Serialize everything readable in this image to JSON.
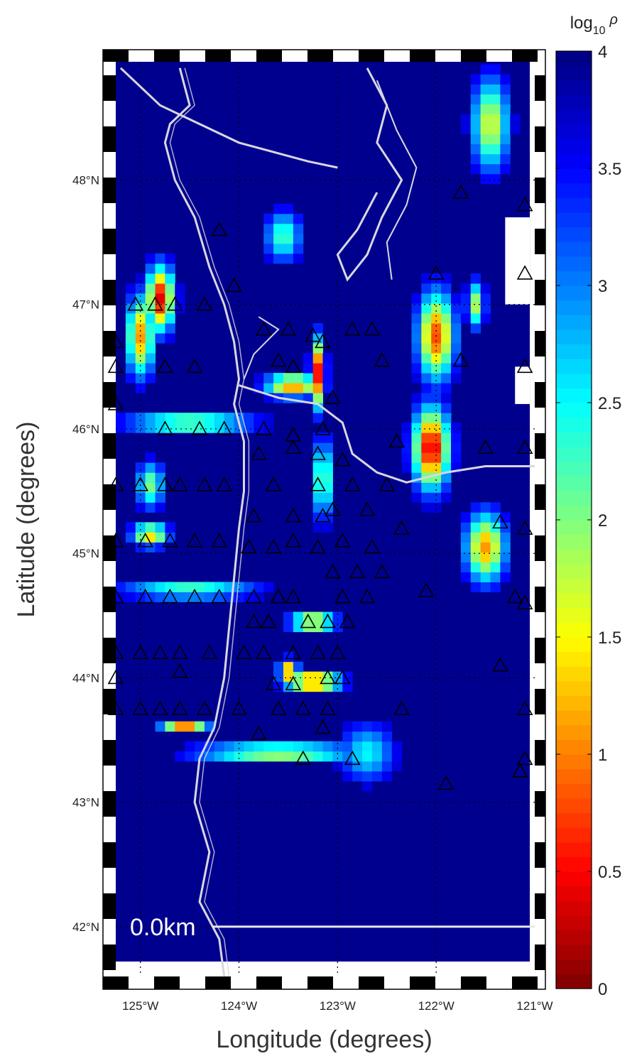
{
  "map": {
    "xlabel": "Longitude (degrees)",
    "ylabel": "Latitude (degrees)",
    "lon_range": [
      -125.25,
      -121.0
    ],
    "lat_range": [
      41.6,
      48.95
    ],
    "lon_tick_values": [
      -125,
      -124,
      -123,
      -122,
      -121
    ],
    "lon_tick_labels": [
      "125°W",
      "124°W",
      "123°W",
      "122°W",
      "121°W"
    ],
    "lat_tick_values": [
      42,
      43,
      44,
      45,
      46,
      47,
      48
    ],
    "lat_tick_labels": [
      "42°N",
      "43°N",
      "44°N",
      "45°N",
      "46°N",
      "47°N",
      "48°N"
    ],
    "depth_label": "0.0km",
    "scale_bar_lat": 42.0
  },
  "colorbar": {
    "title": "log10 ρ",
    "title_base": "log",
    "title_sub": "10",
    "title_symbol": "ρ",
    "min": 0,
    "max": 4,
    "tick_values": [
      0,
      0.5,
      1,
      1.5,
      2,
      2.5,
      3,
      3.5,
      4
    ],
    "tick_labels": [
      "0",
      "0.5",
      "1",
      "1.5",
      "2",
      "2.5",
      "3",
      "3.5",
      "4"
    ],
    "colormap": "jet"
  },
  "colors": {
    "background_value": "#00008f",
    "no_data": "#ffffff",
    "coastline": "#d8d8e0",
    "station_marker": "#000000"
  },
  "stations": [
    {
      "lon": -121.75,
      "lat": 47.9
    },
    {
      "lon": -121.1,
      "lat": 47.8
    },
    {
      "lon": -124.2,
      "lat": 47.6
    },
    {
      "lon": -122.0,
      "lat": 47.25
    },
    {
      "lon": -121.1,
      "lat": 47.25
    },
    {
      "lon": -124.05,
      "lat": 47.15
    },
    {
      "lon": -125.05,
      "lat": 47.0
    },
    {
      "lon": -124.85,
      "lat": 47.0
    },
    {
      "lon": -124.65,
      "lat": 47.0
    },
    {
      "lon": -124.35,
      "lat": 47.0
    },
    {
      "lon": -123.75,
      "lat": 46.8
    },
    {
      "lon": -123.5,
      "lat": 46.8
    },
    {
      "lon": -123.25,
      "lat": 46.75
    },
    {
      "lon": -123.15,
      "lat": 46.7
    },
    {
      "lon": -122.85,
      "lat": 46.8
    },
    {
      "lon": -122.65,
      "lat": 46.8
    },
    {
      "lon": -125.25,
      "lat": 46.7
    },
    {
      "lon": -123.6,
      "lat": 46.55
    },
    {
      "lon": -123.45,
      "lat": 46.5
    },
    {
      "lon": -122.55,
      "lat": 46.55
    },
    {
      "lon": -121.75,
      "lat": 46.55
    },
    {
      "lon": -121.1,
      "lat": 46.5
    },
    {
      "lon": -124.75,
      "lat": 46.5
    },
    {
      "lon": -124.45,
      "lat": 46.5
    },
    {
      "lon": -125.25,
      "lat": 46.5
    },
    {
      "lon": -123.05,
      "lat": 46.25
    },
    {
      "lon": -125.25,
      "lat": 46.2
    },
    {
      "lon": -124.75,
      "lat": 46.0
    },
    {
      "lon": -124.4,
      "lat": 46.0
    },
    {
      "lon": -124.15,
      "lat": 46.0
    },
    {
      "lon": -123.75,
      "lat": 46.0
    },
    {
      "lon": -123.45,
      "lat": 45.95
    },
    {
      "lon": -123.15,
      "lat": 46.0
    },
    {
      "lon": -122.4,
      "lat": 45.9
    },
    {
      "lon": -121.5,
      "lat": 45.85
    },
    {
      "lon": -121.1,
      "lat": 45.85
    },
    {
      "lon": -123.45,
      "lat": 45.85
    },
    {
      "lon": -123.8,
      "lat": 45.8
    },
    {
      "lon": -123.2,
      "lat": 45.8
    },
    {
      "lon": -122.95,
      "lat": 45.75
    },
    {
      "lon": -125.0,
      "lat": 45.55
    },
    {
      "lon": -124.75,
      "lat": 45.55
    },
    {
      "lon": -124.6,
      "lat": 45.55
    },
    {
      "lon": -124.35,
      "lat": 45.55
    },
    {
      "lon": -124.15,
      "lat": 45.55
    },
    {
      "lon": -123.65,
      "lat": 45.55
    },
    {
      "lon": -123.2,
      "lat": 45.55
    },
    {
      "lon": -122.85,
      "lat": 45.55
    },
    {
      "lon": -122.5,
      "lat": 45.55
    },
    {
      "lon": -125.25,
      "lat": 45.55
    },
    {
      "lon": -123.85,
      "lat": 45.3
    },
    {
      "lon": -123.45,
      "lat": 45.3
    },
    {
      "lon": -123.15,
      "lat": 45.3
    },
    {
      "lon": -123.05,
      "lat": 45.35
    },
    {
      "lon": -122.7,
      "lat": 45.35
    },
    {
      "lon": -122.35,
      "lat": 45.2
    },
    {
      "lon": -121.35,
      "lat": 45.25
    },
    {
      "lon": -121.1,
      "lat": 45.2
    },
    {
      "lon": -125.25,
      "lat": 45.1
    },
    {
      "lon": -124.95,
      "lat": 45.1
    },
    {
      "lon": -124.7,
      "lat": 45.1
    },
    {
      "lon": -124.45,
      "lat": 45.1
    },
    {
      "lon": -124.2,
      "lat": 45.1
    },
    {
      "lon": -123.9,
      "lat": 45.05
    },
    {
      "lon": -123.65,
      "lat": 45.05
    },
    {
      "lon": -123.45,
      "lat": 45.1
    },
    {
      "lon": -123.2,
      "lat": 45.05
    },
    {
      "lon": -122.95,
      "lat": 45.1
    },
    {
      "lon": -122.65,
      "lat": 45.05
    },
    {
      "lon": -123.05,
      "lat": 44.85
    },
    {
      "lon": -122.8,
      "lat": 44.85
    },
    {
      "lon": -122.55,
      "lat": 44.85
    },
    {
      "lon": -125.25,
      "lat": 44.65
    },
    {
      "lon": -124.95,
      "lat": 44.65
    },
    {
      "lon": -124.7,
      "lat": 44.65
    },
    {
      "lon": -124.45,
      "lat": 44.65
    },
    {
      "lon": -124.2,
      "lat": 44.65
    },
    {
      "lon": -123.85,
      "lat": 44.65
    },
    {
      "lon": -123.6,
      "lat": 44.65
    },
    {
      "lon": -123.45,
      "lat": 44.65
    },
    {
      "lon": -122.95,
      "lat": 44.65
    },
    {
      "lon": -122.7,
      "lat": 44.65
    },
    {
      "lon": -122.1,
      "lat": 44.7
    },
    {
      "lon": -121.2,
      "lat": 44.65
    },
    {
      "lon": -121.1,
      "lat": 44.6
    },
    {
      "lon": -123.85,
      "lat": 44.45
    },
    {
      "lon": -123.7,
      "lat": 44.45
    },
    {
      "lon": -123.3,
      "lat": 44.45
    },
    {
      "lon": -123.1,
      "lat": 44.45
    },
    {
      "lon": -122.9,
      "lat": 44.45
    },
    {
      "lon": -125.25,
      "lat": 44.2
    },
    {
      "lon": -125.0,
      "lat": 44.2
    },
    {
      "lon": -124.8,
      "lat": 44.2
    },
    {
      "lon": -124.6,
      "lat": 44.2
    },
    {
      "lon": -124.3,
      "lat": 44.2
    },
    {
      "lon": -123.95,
      "lat": 44.2
    },
    {
      "lon": -123.75,
      "lat": 44.2
    },
    {
      "lon": -123.45,
      "lat": 44.2
    },
    {
      "lon": -123.2,
      "lat": 44.2
    },
    {
      "lon": -123.0,
      "lat": 44.2
    },
    {
      "lon": -121.35,
      "lat": 44.1
    },
    {
      "lon": -125.25,
      "lat": 44.0
    },
    {
      "lon": -124.6,
      "lat": 44.05
    },
    {
      "lon": -123.65,
      "lat": 43.95
    },
    {
      "lon": -123.45,
      "lat": 43.95
    },
    {
      "lon": -123.1,
      "lat": 44.0
    },
    {
      "lon": -122.95,
      "lat": 44.0
    },
    {
      "lon": -125.25,
      "lat": 43.75
    },
    {
      "lon": -125.0,
      "lat": 43.75
    },
    {
      "lon": -124.8,
      "lat": 43.75
    },
    {
      "lon": -124.6,
      "lat": 43.75
    },
    {
      "lon": -124.35,
      "lat": 43.75
    },
    {
      "lon": -124.0,
      "lat": 43.75
    },
    {
      "lon": -123.6,
      "lat": 43.75
    },
    {
      "lon": -123.35,
      "lat": 43.75
    },
    {
      "lon": -123.1,
      "lat": 43.75
    },
    {
      "lon": -122.35,
      "lat": 43.75
    },
    {
      "lon": -121.1,
      "lat": 43.75
    },
    {
      "lon": -123.8,
      "lat": 43.55
    },
    {
      "lon": -123.15,
      "lat": 43.6
    },
    {
      "lon": -123.35,
      "lat": 43.35
    },
    {
      "lon": -122.85,
      "lat": 43.35
    },
    {
      "lon": -121.9,
      "lat": 43.15
    },
    {
      "lon": -121.1,
      "lat": 43.35
    },
    {
      "lon": -121.15,
      "lat": 43.25
    }
  ],
  "anomalies": [
    {
      "lon": -124.8,
      "lat": 47.05,
      "rx": 0.15,
      "ry": 0.28,
      "amp": 3.6
    },
    {
      "lon": -125.0,
      "lat": 46.75,
      "rx": 0.15,
      "ry": 0.35,
      "amp": 2.9
    },
    {
      "lon": -123.55,
      "lat": 47.55,
      "rx": 0.2,
      "ry": 0.22,
      "amp": 1.8
    },
    {
      "lon": -122.0,
      "lat": 46.75,
      "rx": 0.2,
      "ry": 0.38,
      "amp": 3.2
    },
    {
      "lon": -122.05,
      "lat": 45.85,
      "rx": 0.2,
      "ry": 0.35,
      "amp": 3.7
    },
    {
      "lon": -121.45,
      "lat": 48.45,
      "rx": 0.2,
      "ry": 0.4,
      "amp": 2.4
    },
    {
      "lon": -121.6,
      "lat": 47.0,
      "rx": 0.1,
      "ry": 0.2,
      "amp": 2.2
    },
    {
      "lon": -121.5,
      "lat": 45.05,
      "rx": 0.22,
      "ry": 0.3,
      "amp": 2.9
    },
    {
      "lon": -123.2,
      "lat": 46.45,
      "rx": 0.08,
      "ry": 0.3,
      "amp": 3.5
    },
    {
      "lon": -123.45,
      "lat": 46.35,
      "rx": 0.3,
      "ry": 0.1,
      "amp": 3.0
    },
    {
      "lon": -124.5,
      "lat": 46.05,
      "rx": 0.7,
      "ry": 0.06,
      "amp": 2.9
    },
    {
      "lon": -123.15,
      "lat": 45.6,
      "rx": 0.08,
      "ry": 0.35,
      "amp": 2.6
    },
    {
      "lon": -124.9,
      "lat": 45.15,
      "rx": 0.2,
      "ry": 0.1,
      "amp": 2.7
    },
    {
      "lon": -124.5,
      "lat": 44.7,
      "rx": 0.75,
      "ry": 0.06,
      "amp": 2.3
    },
    {
      "lon": -123.25,
      "lat": 44.45,
      "rx": 0.25,
      "ry": 0.06,
      "amp": 3.6
    },
    {
      "lon": -123.25,
      "lat": 43.97,
      "rx": 0.3,
      "ry": 0.08,
      "amp": 3.6
    },
    {
      "lon": -123.5,
      "lat": 44.05,
      "rx": 0.1,
      "ry": 0.1,
      "amp": 3.2
    },
    {
      "lon": -124.55,
      "lat": 43.6,
      "rx": 0.25,
      "ry": 0.05,
      "amp": 3.2
    },
    {
      "lon": -123.6,
      "lat": 43.4,
      "rx": 0.9,
      "ry": 0.08,
      "amp": 2.4
    },
    {
      "lon": -122.7,
      "lat": 43.4,
      "rx": 0.3,
      "ry": 0.25,
      "amp": 1.5
    },
    {
      "lon": -124.9,
      "lat": 45.55,
      "rx": 0.15,
      "ry": 0.2,
      "amp": 2.0
    }
  ]
}
